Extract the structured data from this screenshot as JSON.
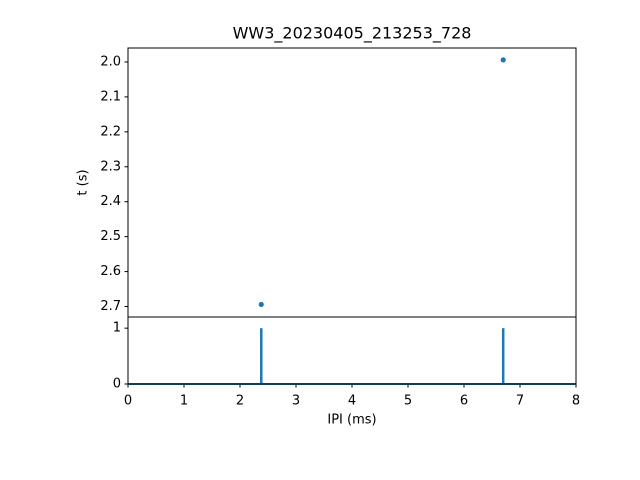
{
  "chart_data": [
    {
      "type": "scatter",
      "title": "WW3_20230405_213253_728",
      "y_label": "t (s)",
      "x": [
        2.38,
        6.7
      ],
      "values": [
        2.694,
        1.994
      ],
      "color": "#1f77b4",
      "xlim": [
        0,
        8
      ],
      "ylim": [
        2.73,
        1.96
      ],
      "yticks": [
        {
          "value": 2.0,
          "label": "2.0"
        },
        2.1,
        2.2,
        2.3,
        2.4,
        2.5,
        2.6,
        2.7
      ]
    },
    {
      "type": "spike",
      "x_label": "IPI (ms)",
      "x": [
        2.38,
        6.7
      ],
      "values": [
        1,
        1
      ],
      "color": "#1f77b4",
      "xlim": [
        0,
        8
      ],
      "ylim": [
        0,
        1.2
      ],
      "xticks": [
        0,
        1,
        2,
        3,
        4,
        5,
        6,
        7,
        8
      ],
      "yticks": [
        0,
        1
      ]
    }
  ]
}
